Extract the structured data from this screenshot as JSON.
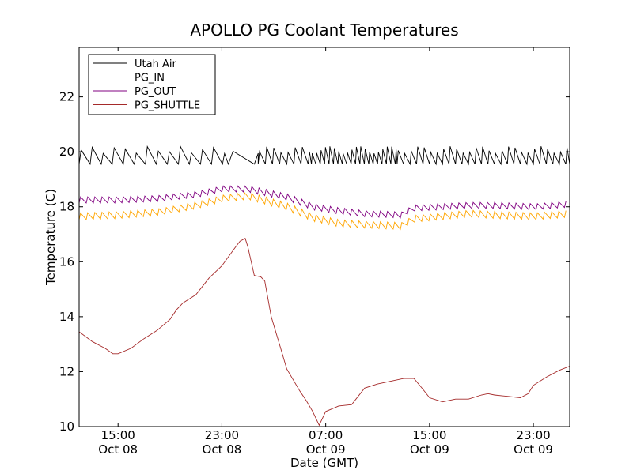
{
  "chart_data": {
    "type": "line",
    "title": "APOLLO PG Coolant Temperatures",
    "xlabel": "Date (GMT)",
    "ylabel": "Temperature (C)",
    "xlim_hours": [
      0,
      37.8
    ],
    "ylim": [
      10,
      23.8
    ],
    "yticks": [
      10,
      12,
      14,
      16,
      18,
      20,
      22
    ],
    "xticks": [
      {
        "hour": 3.0,
        "time": "15:00",
        "date": "Oct 08"
      },
      {
        "hour": 11.0,
        "time": "23:00",
        "date": "Oct 08"
      },
      {
        "hour": 19.0,
        "time": "07:00",
        "date": "Oct 09"
      },
      {
        "hour": 27.0,
        "time": "15:00",
        "date": "Oct 09"
      },
      {
        "hour": 35.0,
        "time": "23:00",
        "date": "Oct 09"
      }
    ],
    "x_unit": "hours since Oct 08 12:00 GMT",
    "legend_position": "upper-left",
    "series": [
      {
        "name": "Utah Air",
        "color": "#000000",
        "style": "sawtooth",
        "base": 19.55,
        "amplitude": 0.65,
        "segments": [
          [
            0,
            11.5,
            0.85
          ],
          [
            11.5,
            13.8,
            2.0
          ],
          [
            13.8,
            17.9,
            0.55
          ],
          [
            17.9,
            24.5,
            0.34
          ],
          [
            24.5,
            37.8,
            0.5
          ]
        ]
      },
      {
        "name": "PG_IN",
        "color": "#ffa500",
        "style": "sawtooth",
        "amplitude": 0.25,
        "period": 0.55,
        "trend": [
          [
            0,
            17.65
          ],
          [
            3,
            17.7
          ],
          [
            6,
            17.8
          ],
          [
            9,
            18.05
          ],
          [
            11,
            18.3
          ],
          [
            13,
            18.4
          ],
          [
            16,
            18.0
          ],
          [
            18,
            17.6
          ],
          [
            20,
            17.4
          ],
          [
            22,
            17.35
          ],
          [
            25,
            17.3
          ],
          [
            25.5,
            17.55
          ],
          [
            30,
            17.75
          ],
          [
            32,
            17.7
          ],
          [
            35,
            17.65
          ],
          [
            37.8,
            17.75
          ]
        ]
      },
      {
        "name": "PG_OUT",
        "color": "#800080",
        "style": "sawtooth",
        "amplitude": 0.22,
        "period": 0.55,
        "trend": [
          [
            0,
            18.25
          ],
          [
            3,
            18.25
          ],
          [
            6,
            18.3
          ],
          [
            9,
            18.45
          ],
          [
            11,
            18.65
          ],
          [
            13,
            18.65
          ],
          [
            16,
            18.35
          ],
          [
            18,
            18.0
          ],
          [
            20,
            17.85
          ],
          [
            22,
            17.75
          ],
          [
            25,
            17.7
          ],
          [
            25.5,
            17.95
          ],
          [
            30,
            18.05
          ],
          [
            32,
            18.05
          ],
          [
            35,
            18.0
          ],
          [
            37.8,
            18.1
          ]
        ]
      },
      {
        "name": "PG_SHUTTLE",
        "color": "#a52a2a",
        "style": "smooth",
        "points": [
          [
            0,
            13.45
          ],
          [
            1,
            13.1
          ],
          [
            2,
            12.85
          ],
          [
            2.6,
            12.65
          ],
          [
            3,
            12.65
          ],
          [
            4,
            12.85
          ],
          [
            5,
            13.2
          ],
          [
            6,
            13.5
          ],
          [
            7,
            13.9
          ],
          [
            7.5,
            14.25
          ],
          [
            8,
            14.5
          ],
          [
            9,
            14.8
          ],
          [
            10,
            15.4
          ],
          [
            11,
            15.85
          ],
          [
            12,
            16.5
          ],
          [
            12.4,
            16.75
          ],
          [
            12.8,
            16.85
          ],
          [
            13,
            16.55
          ],
          [
            13.5,
            15.5
          ],
          [
            14,
            15.45
          ],
          [
            14.3,
            15.3
          ],
          [
            14.8,
            14.0
          ],
          [
            15.5,
            12.9
          ],
          [
            16,
            12.1
          ],
          [
            17,
            11.3
          ],
          [
            17.5,
            10.95
          ],
          [
            18,
            10.55
          ],
          [
            18.5,
            10.05
          ],
          [
            19,
            10.55
          ],
          [
            19.5,
            10.65
          ],
          [
            20,
            10.75
          ],
          [
            21,
            10.8
          ],
          [
            22,
            11.4
          ],
          [
            23,
            11.55
          ],
          [
            24,
            11.65
          ],
          [
            25,
            11.75
          ],
          [
            25.8,
            11.75
          ],
          [
            26.5,
            11.35
          ],
          [
            27,
            11.05
          ],
          [
            28,
            10.9
          ],
          [
            29,
            11.0
          ],
          [
            30,
            11.0
          ],
          [
            31,
            11.15
          ],
          [
            31.5,
            11.2
          ],
          [
            32,
            11.15
          ],
          [
            33,
            11.1
          ],
          [
            34,
            11.05
          ],
          [
            34.6,
            11.2
          ],
          [
            35,
            11.5
          ],
          [
            36,
            11.8
          ],
          [
            37,
            12.05
          ],
          [
            37.8,
            12.2
          ]
        ]
      }
    ]
  }
}
